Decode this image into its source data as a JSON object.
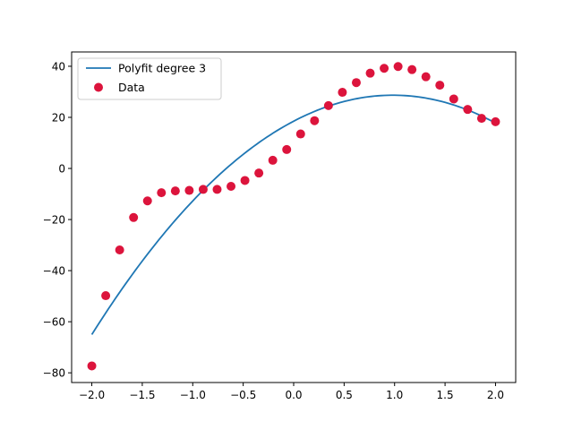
{
  "chart_data": {
    "type": "scatter",
    "title": "",
    "xlabel": "",
    "ylabel": "",
    "xlim": [
      -2.2,
      2.2
    ],
    "ylim": [
      -83.8,
      45.6
    ],
    "xticks": [
      -2.0,
      -1.5,
      -1.0,
      -0.5,
      0.0,
      0.5,
      1.0,
      1.5,
      2.0
    ],
    "xtick_labels": [
      "−2.0",
      "−1.5",
      "−1.0",
      "−0.5",
      "0.0",
      "0.5",
      "1.0",
      "1.5",
      "2.0"
    ],
    "yticks": [
      -80,
      -60,
      -40,
      -20,
      0,
      20,
      40
    ],
    "ytick_labels": [
      "−80",
      "−60",
      "−40",
      "−20",
      "0",
      "20",
      "40"
    ],
    "grid": false,
    "legend_position": "top-left",
    "series": [
      {
        "name": "Polyfit degree 3",
        "kind": "line",
        "color": "#1f77b4",
        "poly_coeffs_low_to_high": [
          18.5,
          20.7,
          -10.53,
          0.0
        ],
        "x_range": [
          -2.0,
          2.0
        ]
      },
      {
        "name": "Data",
        "kind": "scatter",
        "color": "#dc143c",
        "x": [
          -2.0,
          -1.8621,
          -1.7241,
          -1.5862,
          -1.4483,
          -1.3103,
          -1.1724,
          -1.0345,
          -0.8966,
          -0.7586,
          -0.6207,
          -0.4828,
          -0.3448,
          -0.2069,
          -0.069,
          0.069,
          0.2069,
          0.3448,
          0.4828,
          0.6207,
          0.7586,
          0.8966,
          1.0345,
          1.1724,
          1.3103,
          1.4483,
          1.5862,
          1.7241,
          1.8621,
          2.0
        ],
        "y": [
          -77.3,
          -49.8,
          -31.9,
          -19.2,
          -12.7,
          -9.5,
          -8.8,
          -8.6,
          -8.2,
          -8.2,
          -7.0,
          -4.7,
          -1.8,
          3.2,
          7.4,
          13.5,
          18.7,
          24.6,
          29.8,
          33.6,
          37.3,
          39.2,
          39.9,
          38.7,
          35.9,
          32.6,
          27.2,
          23.1,
          19.6,
          18.3
        ]
      }
    ]
  }
}
